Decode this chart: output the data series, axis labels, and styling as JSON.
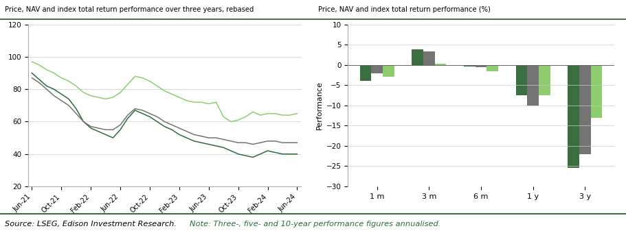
{
  "left_title": "Price, NAV and index total return performance over three years, rebased",
  "right_title": "Price, NAV and index total return performance (%)",
  "footer_source": "Source: LSEG, Edison Investment Research. ",
  "footer_note": "Note: Three-, five- and 10-year performance figures annualised.",
  "line_ylim": [
    20,
    120
  ],
  "line_yticks": [
    20,
    40,
    60,
    80,
    100,
    120
  ],
  "bar_ylim": [
    -30,
    10
  ],
  "bar_yticks": [
    -30,
    -25,
    -20,
    -15,
    -10,
    -5,
    0,
    5,
    10
  ],
  "bar_categories": [
    "1 m",
    "3 m",
    "6 m",
    "1 y",
    "3 y"
  ],
  "bar_bgcg_equity": [
    -4.0,
    3.8,
    -0.3,
    -7.5,
    -25.5
  ],
  "bar_bgcg_nav": [
    -2.0,
    3.3,
    -0.5,
    -10.0,
    -22.0
  ],
  "bar_msci_china": [
    -3.0,
    0.3,
    -1.5,
    -7.5,
    -13.0
  ],
  "color_equity": "#3a6e40",
  "color_nav": "#737373",
  "color_msci": "#8fcc70",
  "color_header_bg": "#e0e0e0",
  "color_footer_bg": "#e8e8e8",
  "color_line_equity": "#2d6a3f",
  "color_line_nav": "#737373",
  "color_line_msci": "#8fcc70",
  "color_footer_text_black": "#000000",
  "color_footer_text_green": "#2d6a3f",
  "color_header_line": "#3a6e40",
  "bar_width": 0.22,
  "x_labels": [
    "Jun-21",
    "Oct-21",
    "Feb-22",
    "Jun-22",
    "Oct-22",
    "Feb-23",
    "Jun-23",
    "Oct-23",
    "Feb-24",
    "Jun-24"
  ],
  "x_tick_pos": [
    0,
    4,
    8,
    12,
    16,
    20,
    24,
    28,
    32,
    36
  ],
  "equity_pts": [
    90,
    86,
    82,
    80,
    77,
    74,
    68,
    60,
    56,
    54,
    52,
    50,
    55,
    62,
    67,
    65,
    63,
    60,
    57,
    55,
    52,
    50,
    48,
    47,
    46,
    45,
    44,
    42,
    40,
    39,
    38,
    40,
    42,
    41,
    40,
    40,
    40
  ],
  "nav_pts": [
    87,
    84,
    80,
    76,
    73,
    70,
    65,
    60,
    57,
    56,
    55,
    55,
    58,
    64,
    68,
    67,
    65,
    63,
    60,
    58,
    56,
    54,
    52,
    51,
    50,
    50,
    49,
    48,
    47,
    47,
    46,
    47,
    48,
    48,
    47,
    47,
    47
  ],
  "msci_pts": [
    97,
    95,
    92,
    90,
    87,
    85,
    82,
    78,
    76,
    75,
    74,
    75,
    78,
    83,
    88,
    87,
    85,
    82,
    79,
    77,
    75,
    73,
    72,
    72,
    71,
    72,
    63,
    60,
    61,
    63,
    66,
    64,
    65,
    65,
    64,
    64,
    65
  ]
}
